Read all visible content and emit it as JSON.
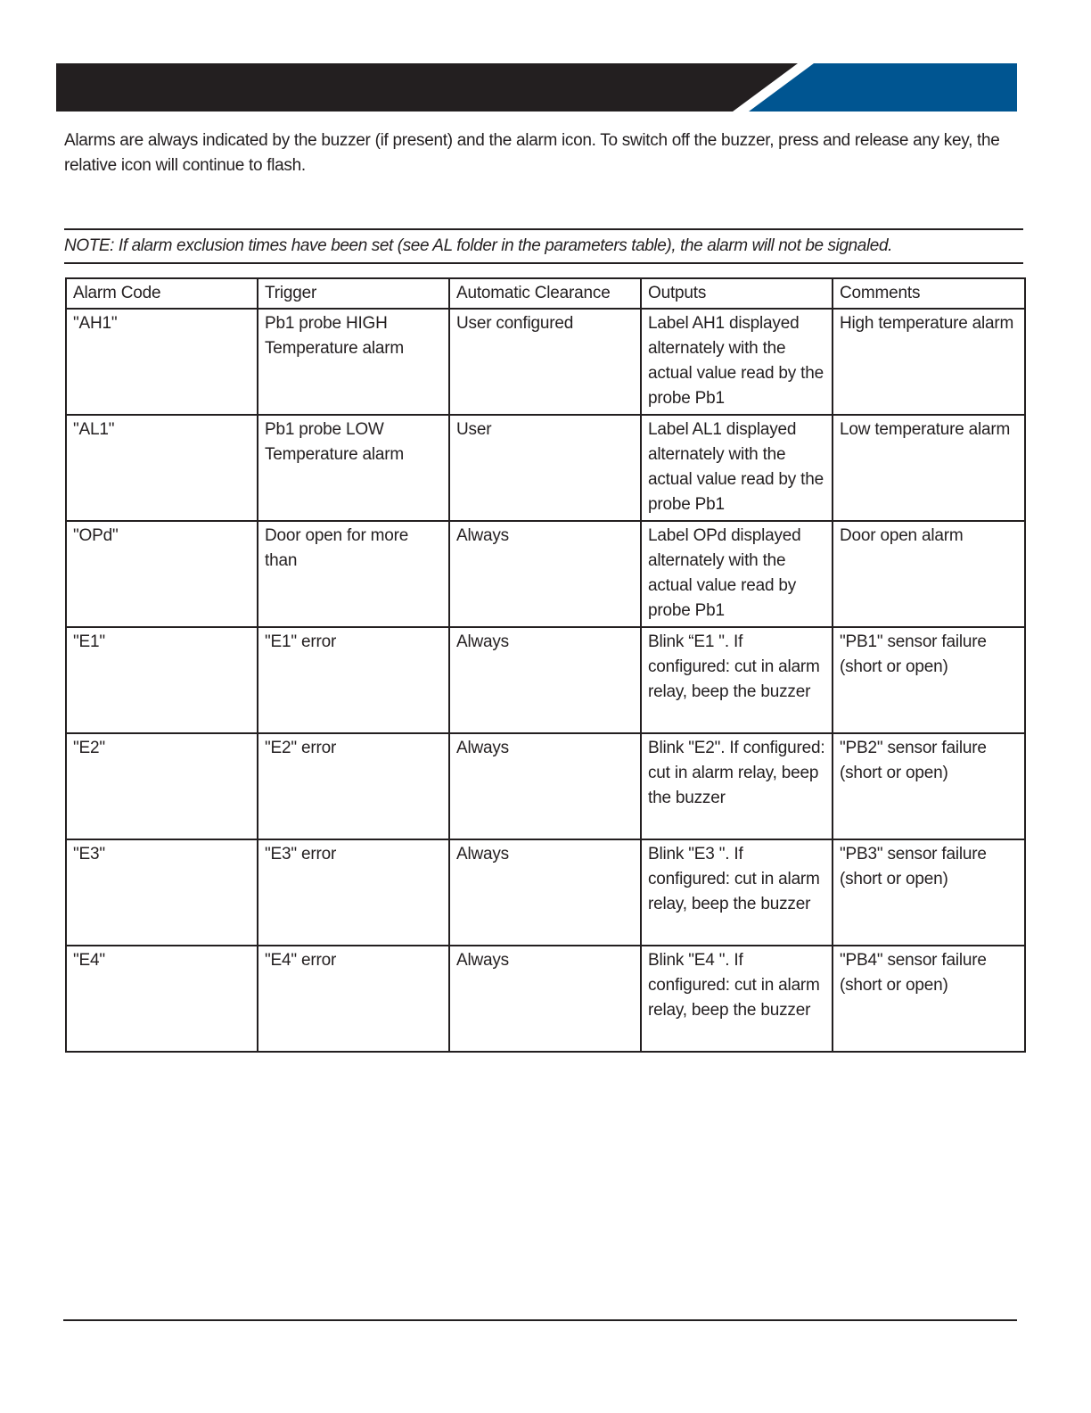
{
  "header": {
    "colors": {
      "dark": "#231f20",
      "accent": "#005591"
    }
  },
  "intro": "Alarms are always indicated by the buzzer (if present) and the alarm icon. To switch off the buzzer, press and release any key, the relative icon will continue to flash.",
  "note": "NOTE: If alarm exclusion times have been set (see AL folder in the parameters table), the alarm will not be signaled.",
  "table": {
    "columns": [
      "Alarm Code",
      "Trigger",
      "Automatic Clearance",
      "Outputs",
      "Comments"
    ],
    "rows": [
      [
        "\"AH1\"",
        "Pb1 probe HIGH Temperature alarm",
        "User configured",
        "Label AH1 displayed alternately with the actual value read by the probe Pb1",
        "High temperature alarm"
      ],
      [
        "\"AL1\"",
        "Pb1 probe LOW Temperature alarm",
        "User",
        "Label AL1 displayed alternately with the actual value read by the probe Pb1",
        "Low temperature alarm"
      ],
      [
        "\"OPd\"",
        "Door open for more than",
        "Always",
        "Label OPd displayed alternately with the actual value read by probe Pb1",
        "Door open alarm"
      ],
      [
        "\"E1\"",
        "\"E1\" error",
        "Always",
        "Blink “E1 \". If configured: cut in alarm relay, beep the buzzer",
        "\"PB1\" sensor failure (short or open)"
      ],
      [
        "\"E2\"",
        "\"E2\" error",
        "Always",
        "Blink \"E2\". If configured: cut in alarm relay, beep the buzzer",
        "\"PB2\" sensor failure (short or open)"
      ],
      [
        "\"E3\"",
        "\"E3\" error",
        "Always",
        "Blink \"E3 \". If configured: cut in alarm relay, beep the buzzer",
        "\"PB3\" sensor failure (short or open)"
      ],
      [
        "\"E4\"",
        "\"E4\" error",
        "Always",
        "Blink \"E4 \". If configured: cut in alarm relay, beep the buzzer",
        "\"PB4\" sensor failure (short or open)"
      ]
    ]
  }
}
